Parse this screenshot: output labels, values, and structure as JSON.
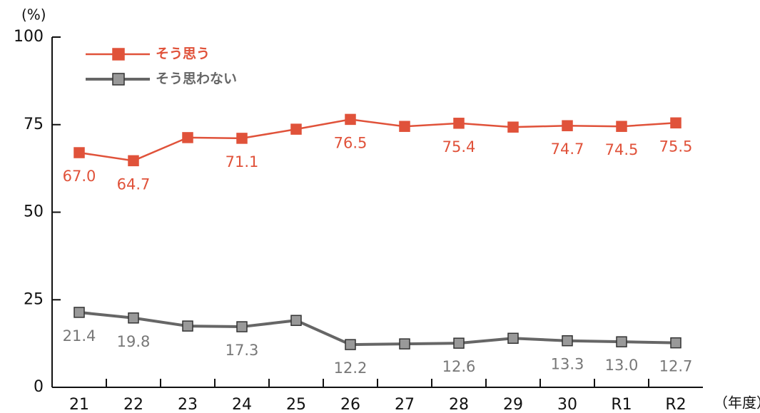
{
  "chart_data": {
    "type": "line",
    "y_label": "(%)",
    "x_label": "（年度）",
    "categories": [
      "21",
      "22",
      "23",
      "24",
      "25",
      "26",
      "27",
      "28",
      "29",
      "30",
      "R1",
      "R2"
    ],
    "series": [
      {
        "name": "そう思う",
        "color": "#e0523a",
        "marker_fill": "#e0523a",
        "values": [
          67.0,
          64.7,
          71.3,
          71.1,
          73.7,
          76.5,
          74.5,
          75.4,
          74.3,
          74.7,
          74.5,
          75.5
        ],
        "value_labels": [
          "67.0",
          "64.7",
          null,
          "71.1",
          null,
          "76.5",
          null,
          "75.4",
          null,
          "74.7",
          "74.5",
          "75.5"
        ]
      },
      {
        "name": "そう思わない",
        "color": "#666666",
        "marker_fill": "#999999",
        "values": [
          21.4,
          19.8,
          17.5,
          17.3,
          19.1,
          12.2,
          12.4,
          12.6,
          14.0,
          13.3,
          13.0,
          12.7
        ],
        "value_labels": [
          "21.4",
          "19.8",
          null,
          "17.3",
          null,
          "12.2",
          null,
          "12.6",
          null,
          "13.3",
          "13.0",
          "12.7"
        ]
      }
    ],
    "ylim": [
      0,
      100
    ],
    "yticks": [
      0,
      25,
      50,
      75,
      100
    ],
    "legend": "upper left"
  }
}
